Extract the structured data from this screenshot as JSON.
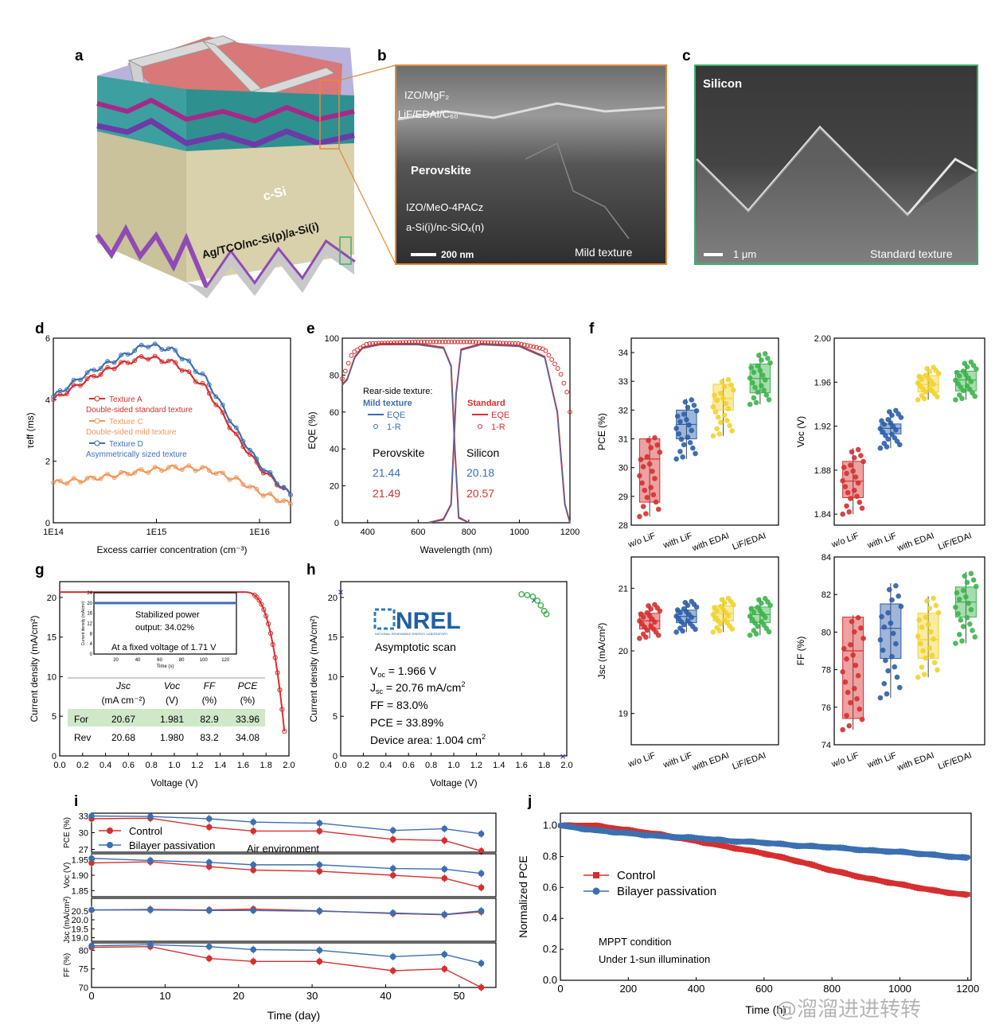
{
  "panels": {
    "a": "a",
    "b": "b",
    "c": "c",
    "d": "d",
    "e": "e",
    "f": "f",
    "g": "g",
    "h": "h",
    "i": "i",
    "j": "j"
  },
  "panel_a": {
    "csi_label": "c-Si",
    "rear_label": "Ag/TCO/nc-Si(p)/a-Si(i)"
  },
  "panel_b": {
    "layer1": "IZO/MgF₂",
    "layer2": "LiF/EDAI/C₆₀",
    "layer3": "Perovskite",
    "layer4": "IZO/MeO-4PACz",
    "layer5": "a-Si(i)/nc-SiOₓ(n)",
    "scale": "200 nm",
    "texture": "Mild texture"
  },
  "panel_c": {
    "title": "Silicon",
    "scale": "1 μm",
    "texture": "Standard texture"
  },
  "colors": {
    "red": "#d62f2f",
    "blue": "#3c6fb0",
    "orange": "#f0965a",
    "green": "#3cb44b",
    "yellow": "#f2d22e",
    "navy": "#2b4c8c"
  },
  "chart_data": [
    {
      "id": "d",
      "type": "line",
      "xlabel": "Excess carrier concentration (cm⁻³)",
      "ylabel": "τeff (ms)",
      "xscale": "log",
      "xlim": [
        100000000000000.0,
        2e+16
      ],
      "ylim": [
        0,
        6
      ],
      "xticks": [
        "1E14",
        "1E15",
        "1E16"
      ],
      "yticks": [
        0,
        2,
        4,
        6
      ],
      "series": [
        {
          "name": "Texture A",
          "desc": "Double-sided standard texture",
          "color": "#d62f2f",
          "x": [
            100000000000000.0,
            200000000000000.0,
            400000000000000.0,
            800000000000000.0,
            1500000000000000.0,
            3000000000000000.0,
            6000000000000000.0,
            1e+16,
            2e+16
          ],
          "y": [
            4.0,
            4.6,
            5.1,
            5.4,
            5.2,
            4.4,
            2.8,
            1.8,
            0.9
          ]
        },
        {
          "name": "Texture C",
          "desc": "Double-sided mild texture",
          "color": "#f0965a",
          "x": [
            100000000000000.0,
            200000000000000.0,
            400000000000000.0,
            800000000000000.0,
            1500000000000000.0,
            3000000000000000.0,
            6000000000000000.0,
            1e+16,
            2e+16
          ],
          "y": [
            1.3,
            1.4,
            1.55,
            1.7,
            1.8,
            1.75,
            1.4,
            1.0,
            0.6
          ]
        },
        {
          "name": "Texture D",
          "desc": "Asymmetrically sized texture",
          "color": "#3c6fb0",
          "x": [
            100000000000000.0,
            200000000000000.0,
            400000000000000.0,
            800000000000000.0,
            1500000000000000.0,
            3000000000000000.0,
            6000000000000000.0,
            1e+16,
            2e+16
          ],
          "y": [
            4.1,
            4.8,
            5.3,
            5.8,
            5.6,
            4.7,
            3.0,
            1.9,
            0.9
          ]
        }
      ]
    },
    {
      "id": "e",
      "type": "line",
      "xlabel": "Wavelength (nm)",
      "ylabel": "EQE (%)",
      "xlim": [
        300,
        1200
      ],
      "ylim": [
        0,
        100
      ],
      "xticks": [
        400,
        600,
        800,
        1000,
        1200
      ],
      "yticks": [
        0,
        20,
        40,
        60,
        80,
        100
      ],
      "legend_title": "Rear-side texture:",
      "groups": [
        {
          "name": "Mild texture",
          "color": "#3c6fb0",
          "eqe": "EQE",
          "r": "1-R"
        },
        {
          "name": "Standard",
          "color": "#d62f2f",
          "eqe": "EQE",
          "r": "1-R"
        }
      ],
      "table": {
        "col1": "Perovskite",
        "col2": "Silicon",
        "mild": [
          "21.44",
          "20.18"
        ],
        "standard": [
          "21.49",
          "20.57"
        ]
      }
    },
    {
      "id": "f",
      "type": "box",
      "categories": [
        "w/o LiF",
        "with LiF",
        "with EDAI",
        "LiF/EDAI"
      ],
      "box_colors": [
        "#d62f2f",
        "#2b5ea8",
        "#f2d22e",
        "#3cb44b"
      ],
      "subplots": [
        {
          "ylabel": "PCE (%)",
          "ylim": [
            28,
            34.5
          ],
          "yticks": [
            "28",
            "29",
            "30",
            "31",
            "32",
            "33",
            "34"
          ],
          "boxes": [
            [
              28.8,
              30.3,
              31.0
            ],
            [
              31.0,
              31.5,
              32.0
            ],
            [
              32.0,
              32.4,
              32.9
            ],
            [
              32.6,
              33.1,
              33.6
            ]
          ],
          "whisk": [
            [
              28.3,
              31.1
            ],
            [
              30.3,
              32.4
            ],
            [
              31.1,
              33.1
            ],
            [
              32.2,
              34.0
            ]
          ]
        },
        {
          "ylabel": "Voc (V)",
          "ylim": [
            1.83,
            2.0
          ],
          "yticks": [
            "1.84",
            "1.88",
            "1.92",
            "1.96",
            "2.00"
          ],
          "boxes": [
            [
              1.855,
              1.87,
              1.888
            ],
            [
              1.913,
              1.918,
              1.922
            ],
            [
              1.951,
              1.958,
              1.966
            ],
            [
              1.952,
              1.962,
              1.97
            ]
          ],
          "whisk": [
            [
              1.84,
              1.9
            ],
            [
              1.9,
              1.935
            ],
            [
              1.944,
              1.974
            ],
            [
              1.944,
              1.979
            ]
          ]
        },
        {
          "ylabel": "Jsc (mA/cm²)",
          "ylim": [
            18.5,
            21.5
          ],
          "yticks": [
            "19",
            "20",
            "21"
          ],
          "boxes": [
            [
              20.35,
              20.48,
              20.6
            ],
            [
              20.45,
              20.55,
              20.65
            ],
            [
              20.48,
              20.6,
              20.72
            ],
            [
              20.45,
              20.58,
              20.7
            ]
          ],
          "whisk": [
            [
              20.2,
              20.75
            ],
            [
              20.3,
              20.8
            ],
            [
              20.3,
              20.85
            ],
            [
              20.25,
              20.85
            ]
          ]
        },
        {
          "ylabel": "FF (%)",
          "ylim": [
            74,
            84
          ],
          "yticks": [
            "74",
            "76",
            "78",
            "80",
            "82",
            "84"
          ],
          "boxes": [
            [
              75.4,
              79.0,
              80.8
            ],
            [
              78.6,
              80.2,
              81.5
            ],
            [
              78.6,
              79.6,
              81.0
            ],
            [
              80.8,
              81.6,
              82.4
            ]
          ],
          "whisk": [
            [
              74.8,
              80.9
            ],
            [
              76.5,
              82.6
            ],
            [
              77.6,
              81.9
            ],
            [
              79.4,
              83.2
            ]
          ]
        }
      ]
    },
    {
      "id": "g",
      "type": "line",
      "xlabel": "Voltage (V)",
      "ylabel": "Current density (mA/cm²)",
      "xlim": [
        0,
        2.0
      ],
      "ylim": [
        0,
        22
      ],
      "xticks": [
        "0.0",
        "0.2",
        "0.4",
        "0.6",
        "0.8",
        "1.0",
        "1.2",
        "1.4",
        "1.6",
        "1.8",
        "2.0"
      ],
      "yticks": [
        0,
        5,
        10,
        15,
        20
      ],
      "inset": {
        "xlabel": "Time (s)",
        "ylabel": "Current density (mA/cm²)",
        "note1": "Stabilized power",
        "note2": "output: 34.02%",
        "note3": "At a fixed voltage of 1.71 V",
        "xticks": [
          "20",
          "40",
          "60",
          "80",
          "100",
          "120"
        ],
        "yticks": [
          "0",
          "4",
          "8",
          "12",
          "16",
          "20",
          "24"
        ]
      },
      "table": {
        "headers": [
          "Jsc",
          "Voc",
          "FF",
          "PCE"
        ],
        "units": [
          "(mA cm⁻²)",
          "(V)",
          "(%)",
          "(%)"
        ],
        "rows": [
          [
            "For",
            "20.67",
            "1.981",
            "82.9",
            "33.96"
          ],
          [
            "Rev",
            "20.68",
            "1.980",
            "83.2",
            "34.08"
          ]
        ]
      }
    },
    {
      "id": "h",
      "type": "scatter",
      "xlabel": "Voltage (V)",
      "ylabel": "Current density (mA/cm²)",
      "xlim": [
        0,
        2.0
      ],
      "ylim": [
        0,
        22
      ],
      "xticks": [
        "0.0",
        "0.2",
        "0.4",
        "0.6",
        "0.8",
        "1.0",
        "1.2",
        "1.4",
        "1.6",
        "1.8",
        "2.0"
      ],
      "yticks": [
        0,
        5,
        10,
        15,
        20
      ],
      "logo": "NREL",
      "logo_sub": "NATIONAL RENEWABLE ENERGY LABORATORY",
      "scan": "Asymptotic scan",
      "metrics": [
        "V",
        "oc",
        " = 1.966 V",
        "J",
        "sc",
        " = 20.76 mA/cm",
        "FF = 83.0%",
        "PCE = 33.89%",
        "Device area: 1.004 cm"
      ],
      "points": {
        "isc": [
          0.0,
          20.76
        ],
        "mpp": [
          1.71,
          19.7
        ],
        "voc": [
          1.966,
          0
        ],
        "green": [
          [
            1.6,
            20.4
          ],
          [
            1.65,
            20.3
          ],
          [
            1.7,
            20.1
          ],
          [
            1.74,
            19.6
          ],
          [
            1.77,
            19.0
          ],
          [
            1.8,
            18.3
          ],
          [
            1.82,
            17.9
          ]
        ]
      }
    },
    {
      "id": "i",
      "type": "line",
      "xlabel": "Time (day)",
      "xlim": [
        0,
        55
      ],
      "xticks": [
        0,
        10,
        20,
        30,
        40,
        50
      ],
      "x": [
        0,
        8,
        16,
        22,
        31,
        41,
        48,
        53
      ],
      "annotation": "Air environment",
      "legend": [
        "Control",
        "Bilayer passivation"
      ],
      "subplots": [
        {
          "ylabel": "PCE (%)",
          "ylim": [
            26.5,
            33.5
          ],
          "yticks": [
            "27",
            "30",
            "33"
          ],
          "control": [
            32.5,
            32.6,
            31.0,
            30.3,
            30.3,
            28.8,
            28.6,
            26.7
          ],
          "bilayer": [
            33.0,
            32.9,
            32.5,
            31.9,
            31.7,
            30.4,
            30.7,
            29.8
          ]
        },
        {
          "ylabel": "Voc (V)",
          "ylim": [
            1.83,
            1.97
          ],
          "yticks": [
            "1.85",
            "1.90",
            "1.95"
          ],
          "control": [
            1.94,
            1.944,
            1.928,
            1.917,
            1.913,
            1.9,
            1.89,
            1.86
          ],
          "bilayer": [
            1.955,
            1.948,
            1.942,
            1.934,
            1.934,
            1.922,
            1.92,
            1.906
          ]
        },
        {
          "ylabel": "Jsc (mA/cm²)",
          "ylim": [
            18.8,
            21.2
          ],
          "yticks": [
            "19.0",
            "19.5",
            "20.0",
            "20.5"
          ],
          "control": [
            20.55,
            20.58,
            20.55,
            20.6,
            20.5,
            20.35,
            20.28,
            20.45
          ],
          "bilayer": [
            20.55,
            20.55,
            20.52,
            20.52,
            20.48,
            20.38,
            20.3,
            20.5
          ]
        },
        {
          "ylabel": "FF (%)",
          "ylim": [
            70,
            82
          ],
          "yticks": [
            "70",
            "75",
            "80"
          ],
          "control": [
            80.8,
            81.0,
            77.8,
            77.0,
            77.0,
            74.5,
            75.0,
            70.0
          ],
          "bilayer": [
            81.2,
            81.5,
            81.0,
            80.2,
            80.0,
            78.3,
            78.9,
            76.5
          ]
        }
      ]
    },
    {
      "id": "j",
      "type": "line",
      "xlabel": "Time (h)",
      "ylabel": "Normalized PCE",
      "xlim": [
        0,
        1210
      ],
      "ylim": [
        0,
        1.08
      ],
      "xticks": [
        0,
        200,
        400,
        600,
        800,
        1000,
        1200
      ],
      "yticks": [
        "0.0",
        "0.2",
        "0.4",
        "0.6",
        "0.8",
        "1.0"
      ],
      "legend": [
        "Control",
        "Bilayer passivation"
      ],
      "note1": "MPPT condition",
      "note2": "Under 1-sun illumination",
      "control": {
        "x": [
          0,
          100,
          200,
          300,
          400,
          500,
          600,
          700,
          800,
          900,
          1000,
          1100,
          1200
        ],
        "y": [
          1.0,
          1.0,
          0.97,
          0.94,
          0.9,
          0.86,
          0.82,
          0.77,
          0.71,
          0.66,
          0.62,
          0.58,
          0.55
        ]
      },
      "bilayer": {
        "x": [
          0,
          100,
          200,
          300,
          400,
          500,
          600,
          700,
          800,
          900,
          1000,
          1100,
          1200
        ],
        "y": [
          1.0,
          0.97,
          0.95,
          0.93,
          0.92,
          0.9,
          0.89,
          0.87,
          0.86,
          0.84,
          0.83,
          0.81,
          0.79
        ]
      }
    }
  ],
  "watermark": "@溜溜进进转转"
}
